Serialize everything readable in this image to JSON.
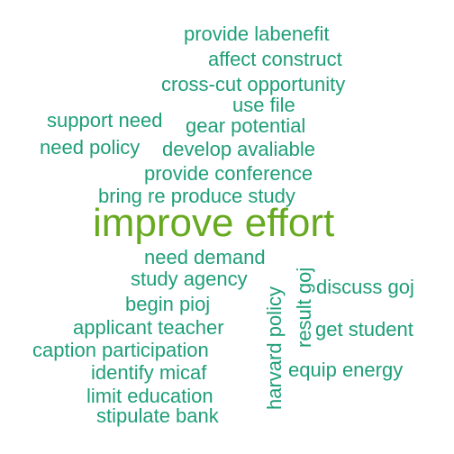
{
  "colors": {
    "primary": "#1f9e78",
    "highlight": "#67a91f",
    "background": "#ffffff"
  },
  "words": [
    "provide labenefit",
    "affect construct",
    "cross-cut opportunity",
    "use file",
    "support need",
    "gear potential",
    "need policy",
    "develop avaliable",
    "provide conference",
    "bring re produce study",
    "improve effort",
    "need demand",
    "study agency",
    "begin pioj",
    "applicant teacher",
    "caption participation",
    "identify micaf",
    "limit education",
    "stipulate bank",
    "harvard policy",
    "result goj",
    "discuss goj",
    "get student",
    "equip energy"
  ]
}
